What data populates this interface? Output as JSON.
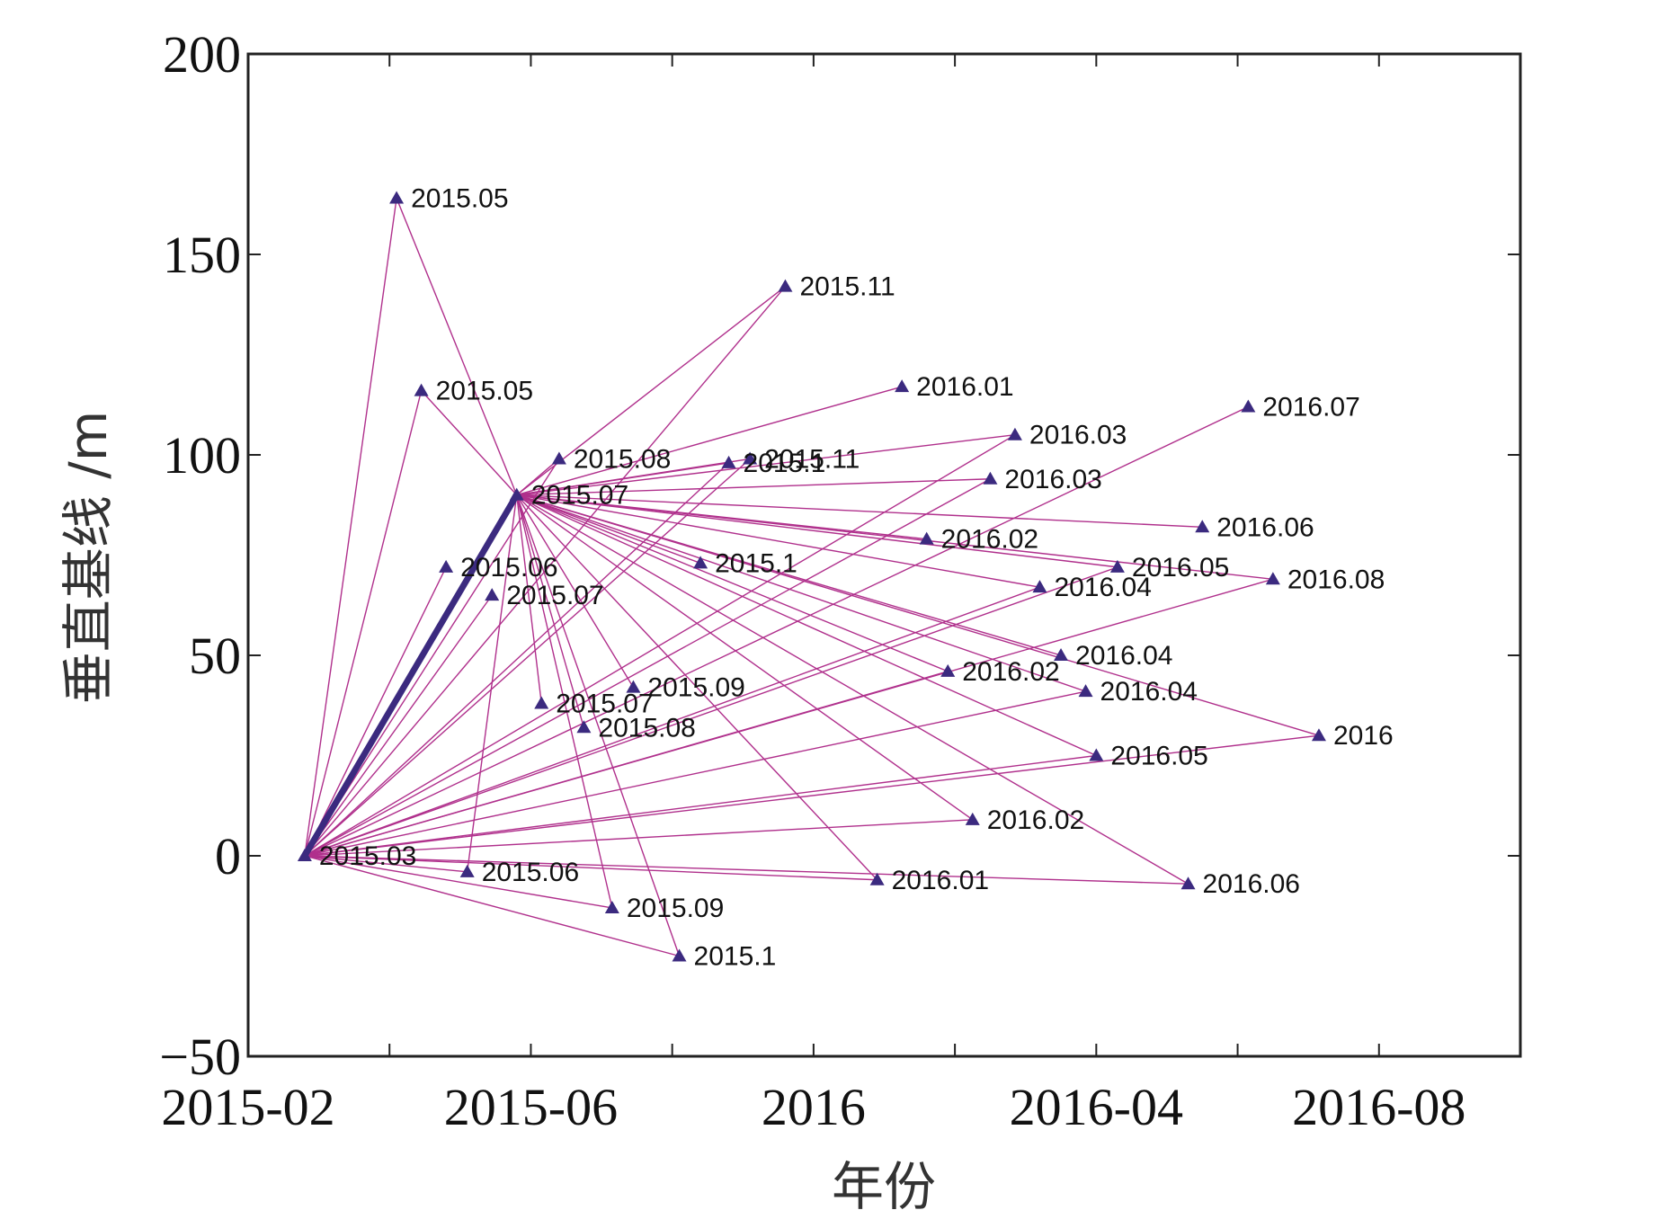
{
  "chart_data": {
    "type": "scatter",
    "title": "",
    "xlabel": "年份",
    "ylabel": "垂直基线 /m",
    "xlim": [
      0,
      18
    ],
    "ylim": [
      -50,
      200
    ],
    "x_ticks": [
      {
        "value": 0,
        "label": "2015-02"
      },
      {
        "value": 2,
        "label": ""
      },
      {
        "value": 4,
        "label": "2015-06"
      },
      {
        "value": 6,
        "label": ""
      },
      {
        "value": 8,
        "label": "2016"
      },
      {
        "value": 10,
        "label": ""
      },
      {
        "value": 12,
        "label": "2016-04"
      },
      {
        "value": 14,
        "label": ""
      },
      {
        "value": 16,
        "label": "2016-08"
      }
    ],
    "y_ticks": [
      {
        "value": -50,
        "label": "−50"
      },
      {
        "value": 0,
        "label": "0"
      },
      {
        "value": 50,
        "label": "50"
      },
      {
        "value": 100,
        "label": "100"
      },
      {
        "value": 150,
        "label": "150"
      },
      {
        "value": 200,
        "label": "200"
      }
    ],
    "colors": {
      "line": "#b0308c",
      "marker": "#3b2a7f",
      "main_edge": "#3b2a7f"
    },
    "hub_a": 0,
    "hub_b": 1,
    "points": [
      {
        "label": "2015.03",
        "x": 0.8,
        "y": 0
      },
      {
        "label": "2015.07",
        "x": 3.8,
        "y": 90
      },
      {
        "label": "2015.05",
        "x": 2.1,
        "y": 164
      },
      {
        "label": "2015.05",
        "x": 2.45,
        "y": 116
      },
      {
        "label": "2015.06",
        "x": 2.8,
        "y": 72
      },
      {
        "label": "2015.07",
        "x": 3.45,
        "y": 65
      },
      {
        "label": "2015.08",
        "x": 4.4,
        "y": 99
      },
      {
        "label": "2015.11",
        "x": 7.6,
        "y": 142
      },
      {
        "label": "2016.01",
        "x": 9.25,
        "y": 117
      },
      {
        "label": "2016.03",
        "x": 10.85,
        "y": 105
      },
      {
        "label": "2016.07",
        "x": 14.15,
        "y": 112
      },
      {
        "label": "2015.11",
        "x": 7.1,
        "y": 99
      },
      {
        "label": "2015.1",
        "x": 6.8,
        "y": 98
      },
      {
        "label": "2016.03",
        "x": 10.5,
        "y": 94
      },
      {
        "label": "2016.06",
        "x": 13.5,
        "y": 82
      },
      {
        "label": "2016.02",
        "x": 9.6,
        "y": 79
      },
      {
        "label": "2015.1",
        "x": 6.4,
        "y": 73
      },
      {
        "label": "2016.05",
        "x": 12.3,
        "y": 72
      },
      {
        "label": "2016.08",
        "x": 14.5,
        "y": 69
      },
      {
        "label": "2016.04",
        "x": 11.2,
        "y": 67
      },
      {
        "label": "2016.04",
        "x": 11.5,
        "y": 50
      },
      {
        "label": "2016.02",
        "x": 9.9,
        "y": 46
      },
      {
        "label": "2016.04",
        "x": 11.85,
        "y": 41
      },
      {
        "label": "2015.09",
        "x": 5.45,
        "y": 42
      },
      {
        "label": "2015.07",
        "x": 4.15,
        "y": 38
      },
      {
        "label": "2015.08",
        "x": 4.75,
        "y": 32
      },
      {
        "label": "2016",
        "x": 15.15,
        "y": 30
      },
      {
        "label": "2016.05",
        "x": 12.0,
        "y": 25
      },
      {
        "label": "2016.02",
        "x": 10.25,
        "y": 9
      },
      {
        "label": "2015.06",
        "x": 3.1,
        "y": -4
      },
      {
        "label": "2016.01",
        "x": 8.9,
        "y": -6
      },
      {
        "label": "2016.06",
        "x": 13.3,
        "y": -7
      },
      {
        "label": "2015.09",
        "x": 5.15,
        "y": -13
      },
      {
        "label": "2015.1",
        "x": 6.1,
        "y": -25
      }
    ],
    "edges": [
      [
        0,
        1
      ],
      [
        0,
        2
      ],
      [
        0,
        3
      ],
      [
        0,
        4
      ],
      [
        0,
        5
      ],
      [
        0,
        6
      ],
      [
        0,
        7
      ],
      [
        0,
        9
      ],
      [
        0,
        10
      ],
      [
        0,
        11
      ],
      [
        0,
        12
      ],
      [
        0,
        13
      ],
      [
        0,
        17
      ],
      [
        0,
        18
      ],
      [
        0,
        19
      ],
      [
        0,
        21
      ],
      [
        0,
        22
      ],
      [
        0,
        26
      ],
      [
        0,
        27
      ],
      [
        0,
        28
      ],
      [
        0,
        29
      ],
      [
        0,
        30
      ],
      [
        0,
        31
      ],
      [
        0,
        32
      ],
      [
        0,
        33
      ],
      [
        1,
        2
      ],
      [
        1,
        3
      ],
      [
        1,
        6
      ],
      [
        1,
        7
      ],
      [
        1,
        8
      ],
      [
        1,
        9
      ],
      [
        1,
        11
      ],
      [
        1,
        12
      ],
      [
        1,
        13
      ],
      [
        1,
        14
      ],
      [
        1,
        15
      ],
      [
        1,
        16
      ],
      [
        1,
        17
      ],
      [
        1,
        18
      ],
      [
        1,
        19
      ],
      [
        1,
        20
      ],
      [
        1,
        21
      ],
      [
        1,
        22
      ],
      [
        1,
        23
      ],
      [
        1,
        24
      ],
      [
        1,
        25
      ],
      [
        1,
        26
      ],
      [
        1,
        27
      ],
      [
        1,
        28
      ],
      [
        1,
        29
      ],
      [
        1,
        30
      ],
      [
        1,
        31
      ],
      [
        1,
        32
      ],
      [
        1,
        33
      ]
    ]
  }
}
